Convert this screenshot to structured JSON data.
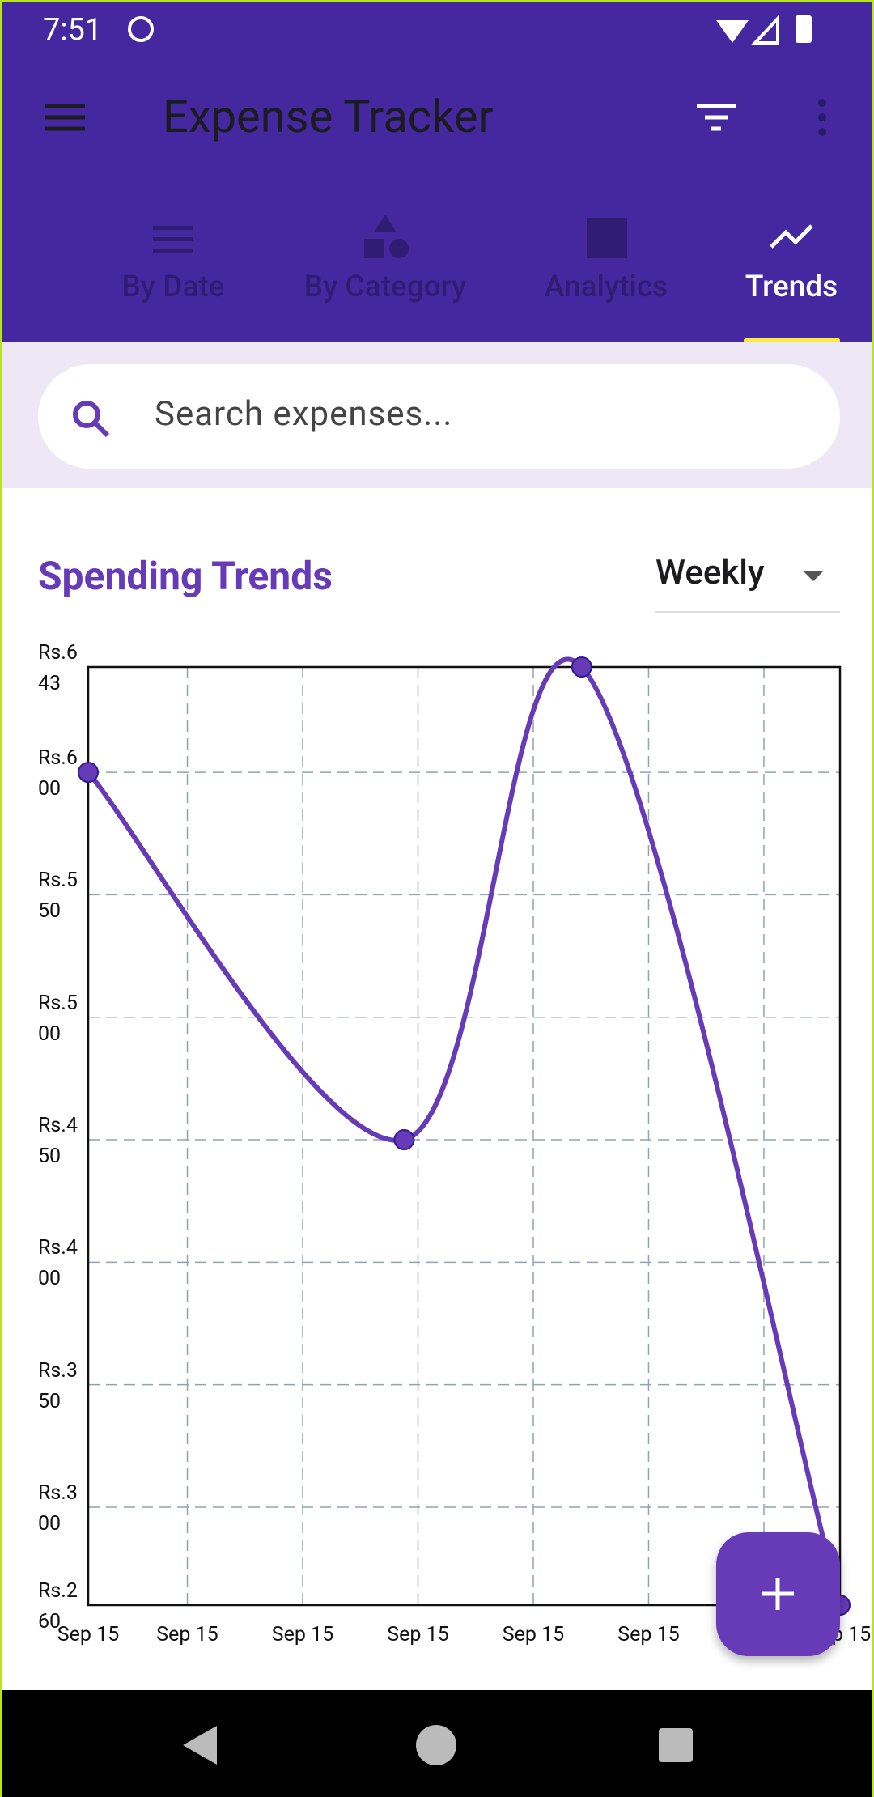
{
  "status_bar": {
    "time": "7:51"
  },
  "app_bar": {
    "title": "Expense Tracker"
  },
  "tabs": [
    "By Date",
    "By Category",
    "Analytics",
    "Trends"
  ],
  "search": {
    "placeholder": "Search expenses..."
  },
  "section": {
    "title": "Spending Trends",
    "period": "Weekly"
  },
  "chart_data": {
    "type": "line",
    "x": [
      0,
      2.74,
      4.28,
      6.52
    ],
    "series": [
      {
        "color": "#673ab7",
        "values": [
          600,
          450,
          643,
          260
        ]
      }
    ],
    "xlim": [
      0,
      6.52
    ],
    "xticks": [
      {
        "value": 0,
        "label": "Sep 15"
      },
      {
        "value": 0.86,
        "label": "Sep 15"
      },
      {
        "value": 1.86,
        "label": "Sep 15"
      },
      {
        "value": 2.86,
        "label": "Sep 15"
      },
      {
        "value": 3.86,
        "label": "Sep 15"
      },
      {
        "value": 4.86,
        "label": "Sep 15"
      },
      {
        "value": 5.86,
        "label": "Sep 15"
      },
      {
        "value": 6.52,
        "label": "Sep 15"
      }
    ],
    "ylim": [
      260,
      643
    ],
    "yticks": [
      {
        "value": 643,
        "label": "Rs.643"
      },
      {
        "value": 600,
        "label": "Rs.600"
      },
      {
        "value": 550,
        "label": "Rs.550"
      },
      {
        "value": 500,
        "label": "Rs.500"
      },
      {
        "value": 450,
        "label": "Rs.450"
      },
      {
        "value": 400,
        "label": "Rs.400"
      },
      {
        "value": 350,
        "label": "Rs.350"
      },
      {
        "value": 300,
        "label": "Rs.300"
      },
      {
        "value": 260,
        "label": "Rs.260"
      }
    ],
    "grid": true
  }
}
